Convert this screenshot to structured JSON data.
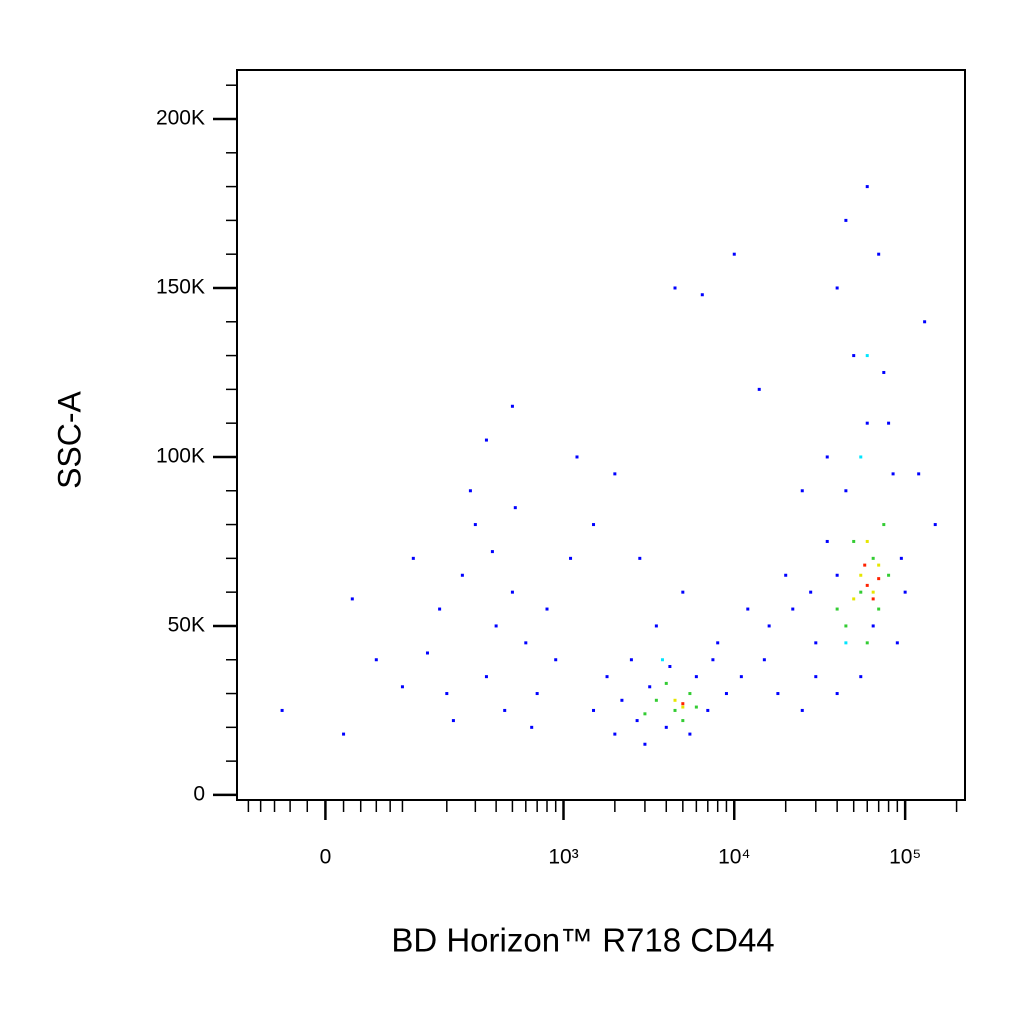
{
  "chart_data": {
    "type": "scatter",
    "x_label": "BD Horizon™ R718  CD44",
    "y_label": "SSC-A",
    "x_scale": "biexponential",
    "xlim": [
      -121,
      224000
    ],
    "ylim": [
      -1500,
      214500
    ],
    "xticks": [
      0,
      {
        "value": 1000,
        "label": "10³"
      },
      {
        "value": 10000,
        "label": "10⁴"
      },
      {
        "value": 100000,
        "label": "10⁵"
      }
    ],
    "x_minor_ticks": [
      -100,
      -80,
      -60,
      -40,
      -20,
      20,
      40,
      60,
      80,
      100,
      200,
      300,
      400,
      500,
      600,
      700,
      800,
      900,
      2000,
      3000,
      4000,
      5000,
      6000,
      7000,
      8000,
      9000,
      20000,
      30000,
      40000,
      50000,
      60000,
      70000,
      80000,
      90000,
      200000
    ],
    "yticks": [
      0,
      {
        "value": 50000,
        "label": "50K"
      },
      {
        "value": 100000,
        "label": "100K"
      },
      {
        "value": 150000,
        "label": "150K"
      },
      {
        "value": 200000,
        "label": "200K"
      }
    ],
    "y_minor_ticks": [
      10000,
      20000,
      30000,
      40000,
      60000,
      70000,
      80000,
      90000,
      110000,
      120000,
      130000,
      140000,
      160000,
      170000,
      180000,
      190000,
      210000
    ],
    "series": [
      {
        "color": "#0000ff",
        "x": [
          -50,
          20,
          60,
          30,
          150,
          200,
          250,
          300,
          180,
          400,
          350,
          500,
          450,
          120,
          600,
          700,
          280,
          800,
          220,
          380,
          100,
          520,
          650,
          900,
          1100,
          1500,
          1800,
          2000,
          2500,
          2200,
          3000,
          3500,
          4000,
          1200,
          2000,
          5000,
          6000,
          7000,
          8000,
          9000,
          12000,
          15000,
          18000,
          20000,
          6500,
          10000,
          4500,
          14000,
          25000,
          30000,
          35000,
          40000,
          45000,
          60000,
          80000,
          100000,
          150000,
          130000,
          50000,
          70000,
          25000,
          30000,
          40000,
          55000,
          90000,
          120000,
          3200,
          4200,
          2700,
          5500,
          7500,
          11000,
          16000,
          22000,
          28000,
          35000,
          45000,
          60000,
          75000,
          85000,
          95000,
          40000,
          65000,
          500,
          350,
          1500,
          2800
        ],
        "values": [
          25000,
          18000,
          40000,
          58000,
          42000,
          30000,
          65000,
          80000,
          55000,
          50000,
          35000,
          60000,
          25000,
          70000,
          45000,
          30000,
          90000,
          55000,
          22000,
          72000,
          32000,
          85000,
          20000,
          40000,
          70000,
          25000,
          35000,
          18000,
          40000,
          28000,
          15000,
          50000,
          20000,
          100000,
          95000,
          60000,
          35000,
          25000,
          45000,
          30000,
          55000,
          40000,
          30000,
          65000,
          148000,
          160000,
          150000,
          120000,
          25000,
          35000,
          100000,
          150000,
          170000,
          180000,
          110000,
          60000,
          80000,
          140000,
          130000,
          160000,
          90000,
          45000,
          30000,
          35000,
          45000,
          95000,
          32000,
          38000,
          22000,
          18000,
          40000,
          35000,
          50000,
          55000,
          60000,
          75000,
          90000,
          110000,
          125000,
          95000,
          70000,
          65000,
          50000,
          115000,
          105000,
          80000,
          70000
        ]
      },
      {
        "color": "#00e5ff",
        "x": [
          3800,
          45000,
          55000,
          60000
        ],
        "values": [
          40000,
          45000,
          100000,
          130000
        ]
      },
      {
        "color": "#33cc33",
        "x": [
          3500,
          4500,
          5500,
          4000,
          6000,
          3000,
          5000,
          45000,
          55000,
          65000,
          70000,
          50000,
          60000,
          75000,
          40000,
          80000
        ],
        "values": [
          28000,
          25000,
          30000,
          33000,
          26000,
          24000,
          22000,
          50000,
          60000,
          70000,
          55000,
          75000,
          45000,
          80000,
          55000,
          65000
        ]
      },
      {
        "color": "#e6e600",
        "x": [
          4500,
          5000,
          55000,
          65000,
          60000,
          70000,
          50000
        ],
        "values": [
          28000,
          26000,
          65000,
          60000,
          75000,
          68000,
          58000
        ]
      },
      {
        "color": "#ff2200",
        "x": [
          5000,
          60000,
          65000,
          58000,
          70000
        ],
        "values": [
          27000,
          62000,
          58000,
          68000,
          64000
        ]
      }
    ]
  }
}
